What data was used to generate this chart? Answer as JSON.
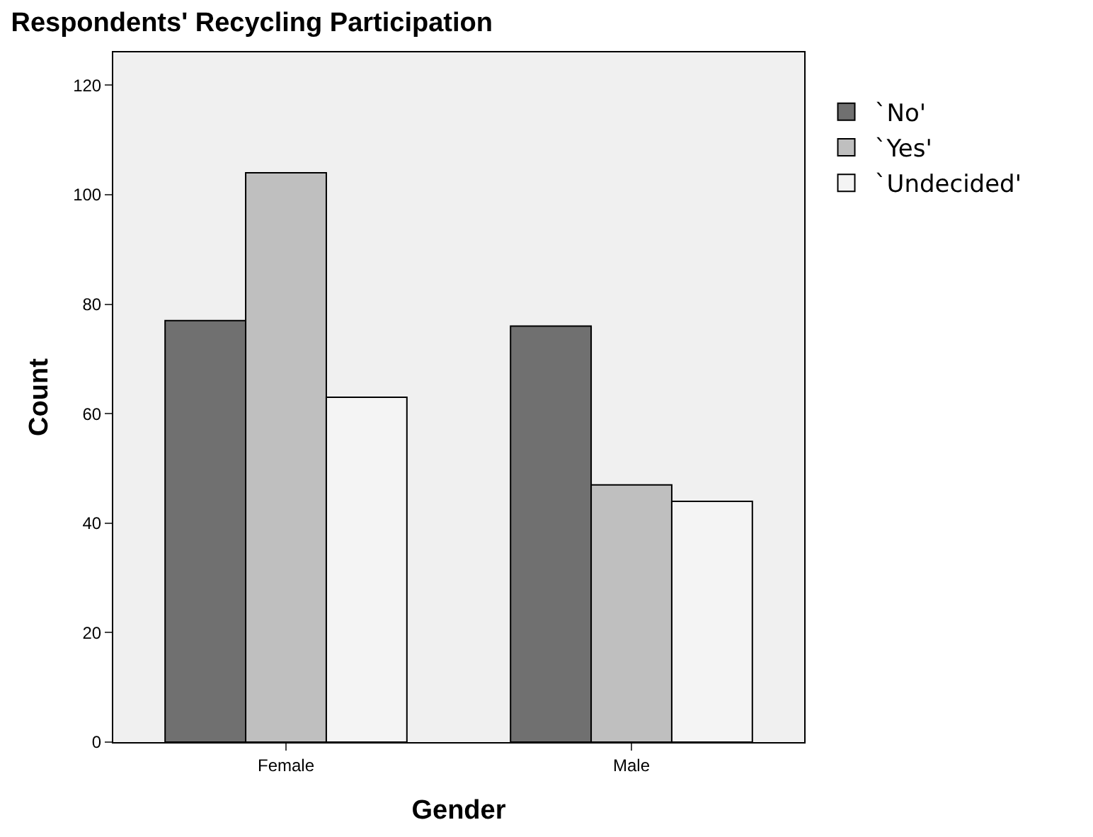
{
  "chart_data": {
    "type": "bar",
    "title": "Respondents' Recycling Participation",
    "xlabel": "Gender",
    "ylabel": "Count",
    "categories": [
      "Female",
      "Male"
    ],
    "series": [
      {
        "name": "`No'",
        "color": "#707070",
        "values": [
          77,
          76
        ]
      },
      {
        "name": "`Yes'",
        "color": "#bfbfbf",
        "values": [
          104,
          47
        ]
      },
      {
        "name": "`Undecided'",
        "color": "#f4f4f4",
        "values": [
          63,
          44
        ]
      }
    ],
    "ylim": [
      0,
      126
    ],
    "yticks": [
      0,
      20,
      40,
      60,
      80,
      100,
      120
    ],
    "grid": false,
    "legend": "top right"
  }
}
